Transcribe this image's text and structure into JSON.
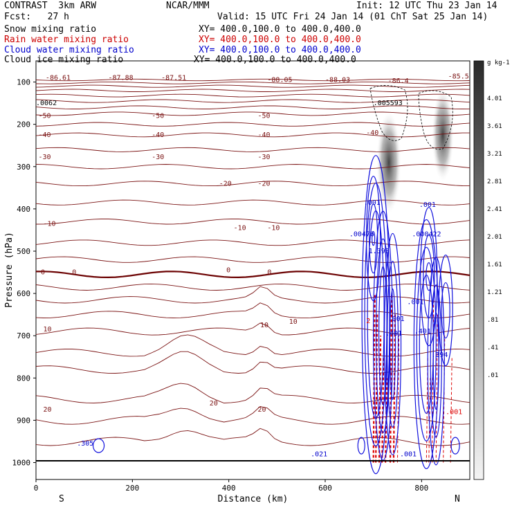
{
  "header": {
    "model": "CONTRAST  3km ARW",
    "center": "NCAR/MMM",
    "init": "Init: 12 UTC Thu 23 Jan 14",
    "fcst": "Fcst:   27 h",
    "valid": "Valid: 15 UTC Fri 24 Jan 14 (01 ChT Sat 25 Jan 14)"
  },
  "legend": [
    {
      "label": "Snow mixing ratio",
      "xy": "XY= 400.0,100.0 to 400.0,400.0",
      "color": "#000000"
    },
    {
      "label": "Rain water mixing ratio",
      "xy": "XY= 400.0,100.0 to 400.0,400.0",
      "color": "#cc0000"
    },
    {
      "label": "Cloud water mixing ratio",
      "xy": "XY= 400.0,100.0 to 400.0,400.0",
      "color": "#0000cc"
    },
    {
      "label": "Cloud ice mixing ratio",
      "xy": "XY= 400.0,100.0 to 400.0,400.0",
      "color": "#000000"
    }
  ],
  "chart_data": {
    "type": "cross-section contour",
    "xlabel": "Distance (km)",
    "ylabel": "Pressure (hPa)",
    "xlim": [
      0,
      900
    ],
    "ylim": [
      1040,
      50
    ],
    "x_ticks": [
      0,
      200,
      400,
      600,
      800
    ],
    "y_ticks": [
      100,
      200,
      300,
      400,
      500,
      600,
      700,
      800,
      900,
      1000
    ],
    "x_end_labels": [
      "S",
      "N"
    ],
    "colorbar": {
      "unit": "g kg-1",
      "ticks": [
        "4.01",
        "3.61",
        "3.21",
        "2.81",
        "2.41",
        "2.01",
        "1.61",
        "1.21",
        ".81",
        ".41",
        ".01"
      ]
    },
    "temperature_contour_labels": [
      {
        "x": 5,
        "p": 185,
        "text": "-50"
      },
      {
        "x": 240,
        "p": 185,
        "text": "-50"
      },
      {
        "x": 460,
        "p": 185,
        "text": "-50"
      },
      {
        "x": 5,
        "p": 230,
        "text": "-40"
      },
      {
        "x": 240,
        "p": 230,
        "text": "-40"
      },
      {
        "x": 460,
        "p": 230,
        "text": "-40"
      },
      {
        "x": 685,
        "p": 225,
        "text": "-40"
      },
      {
        "x": 5,
        "p": 282,
        "text": "-30"
      },
      {
        "x": 240,
        "p": 282,
        "text": "-30"
      },
      {
        "x": 460,
        "p": 282,
        "text": "-30"
      },
      {
        "x": 380,
        "p": 345,
        "text": "-20"
      },
      {
        "x": 460,
        "p": 345,
        "text": "-20"
      },
      {
        "x": 15,
        "p": 440,
        "text": "-10"
      },
      {
        "x": 410,
        "p": 450,
        "text": "-10"
      },
      {
        "x": 480,
        "p": 450,
        "text": "-10"
      },
      {
        "x": 10,
        "p": 555,
        "text": "0"
      },
      {
        "x": 75,
        "p": 555,
        "text": "0"
      },
      {
        "x": 395,
        "p": 550,
        "text": "0"
      },
      {
        "x": 480,
        "p": 555,
        "text": "0"
      },
      {
        "x": 15,
        "p": 690,
        "text": "10"
      },
      {
        "x": 465,
        "p": 680,
        "text": "10"
      },
      {
        "x": 525,
        "p": 672,
        "text": "10"
      },
      {
        "x": 15,
        "p": 880,
        "text": "20"
      },
      {
        "x": 360,
        "p": 865,
        "text": "20"
      },
      {
        "x": 460,
        "p": 880,
        "text": "20"
      }
    ],
    "minimum_labels": [
      {
        "x": 20,
        "p": 95,
        "text": "-86.61"
      },
      {
        "x": 150,
        "p": 95,
        "text": "-87.88"
      },
      {
        "x": 260,
        "p": 95,
        "text": "-87.51"
      },
      {
        "x": 480,
        "p": 100,
        "text": "-88.05"
      },
      {
        "x": 600,
        "p": 100,
        "text": "-88.03"
      },
      {
        "x": 730,
        "p": 102,
        "text": "-86.4"
      },
      {
        "x": 855,
        "p": 92,
        "text": "-85.5"
      }
    ],
    "ice_labels": [
      {
        "x": 0,
        "p": 155,
        "text": ".0062"
      },
      {
        "x": 700,
        "p": 155,
        "text": ".005593"
      }
    ],
    "cloud_water_labels": [
      {
        "x": 650,
        "p": 465,
        "text": ".00476"
      },
      {
        "x": 780,
        "p": 465,
        "text": ".000422"
      },
      {
        "x": 680,
        "p": 390,
        "text": ".001"
      },
      {
        "x": 795,
        "p": 395,
        "text": ".001"
      },
      {
        "x": 690,
        "p": 505,
        "text": "1.393"
      },
      {
        "x": 770,
        "p": 625,
        "text": ".001"
      },
      {
        "x": 730,
        "p": 665,
        "text": ".001"
      },
      {
        "x": 725,
        "p": 700,
        "text": ".401"
      },
      {
        "x": 785,
        "p": 695,
        "text": ".401"
      },
      {
        "x": 820,
        "p": 750,
        "text": ".394"
      },
      {
        "x": 85,
        "p": 960,
        "text": ".305"
      },
      {
        "x": 570,
        "p": 985,
        "text": ".021"
      },
      {
        "x": 755,
        "p": 985,
        "text": ".001"
      }
    ],
    "rain_labels": [
      {
        "x": 685,
        "p": 670,
        "text": "2"
      },
      {
        "x": 850,
        "p": 885,
        "text": ".001"
      }
    ]
  }
}
